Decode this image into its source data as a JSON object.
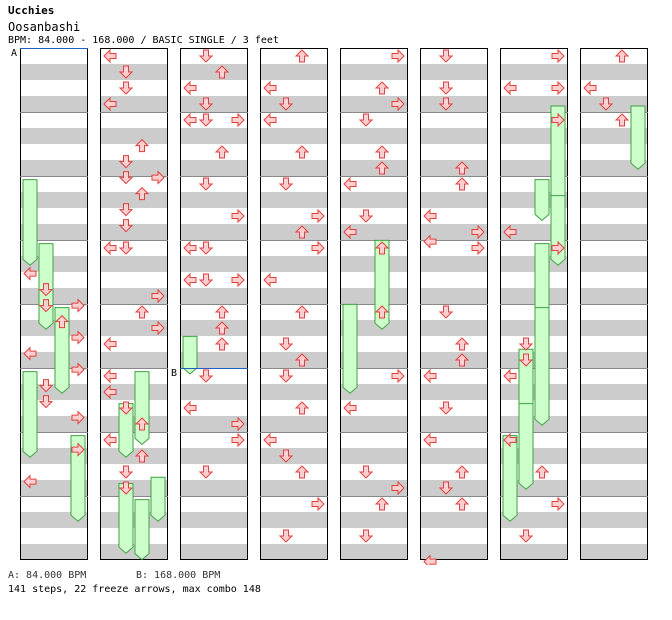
{
  "header": {
    "artist": "Ucchies",
    "title": "Oosanbashi",
    "meta": "BPM: 84.000 - 168.000 / BASIC SINGLE / 3 feet"
  },
  "bpm_markers": [
    {
      "label": "A",
      "column": 0,
      "row": 0
    },
    {
      "label": "B",
      "column": 2,
      "row": 5
    }
  ],
  "legend": {
    "a": "A: 84.000 BPM",
    "b": "B: 168.000 BPM"
  },
  "summary": "141 steps, 22 freeze arrows, max combo 148",
  "colors": {
    "stripe": "#cccccc",
    "arrow_fill": "#ffd0d0",
    "arrow_stroke": "#e04040",
    "freeze_fill": "#ccffcc",
    "freeze_stroke": "#40a040",
    "bpm_line": "#2060c0"
  },
  "arrow_icons": {
    "L": "arrow-left-icon",
    "D": "arrow-down-icon",
    "U": "arrow-up-icon",
    "R": "arrow-right-icon"
  },
  "notes": [
    [
      0,
      0,
      "L",
      6.8
    ],
    [
      0,
      0,
      "D",
      7.3
    ],
    [
      0,
      0,
      "D",
      7.8
    ],
    [
      0,
      0,
      "R",
      7.8
    ],
    [
      0,
      0,
      "U",
      8.3
    ],
    [
      0,
      0,
      "R",
      8.8
    ],
    [
      0,
      0,
      "L",
      9.3
    ],
    [
      0,
      0,
      "R",
      9.8
    ],
    [
      0,
      0,
      "D",
      10.3
    ],
    [
      0,
      0,
      "D",
      10.8
    ],
    [
      0,
      0,
      "R",
      11.3
    ],
    [
      0,
      0,
      "R",
      12.3
    ],
    [
      0,
      0,
      "L",
      13.3
    ],
    [
      0,
      1,
      "L",
      0
    ],
    [
      0,
      1,
      "D",
      0.5
    ],
    [
      0,
      1,
      "D",
      1
    ],
    [
      0,
      1,
      "L",
      1.5
    ],
    [
      0,
      1,
      "U",
      2.8
    ],
    [
      0,
      1,
      "D",
      3.3
    ],
    [
      0,
      1,
      "D",
      3.8
    ],
    [
      0,
      1,
      "R",
      3.8
    ],
    [
      0,
      1,
      "U",
      4.3
    ],
    [
      0,
      1,
      "D",
      4.8
    ],
    [
      0,
      1,
      "D",
      5.3
    ],
    [
      0,
      1,
      "L",
      6
    ],
    [
      0,
      1,
      "D",
      6
    ],
    [
      0,
      1,
      "R",
      7.5
    ],
    [
      0,
      1,
      "U",
      8
    ],
    [
      0,
      1,
      "R",
      8.5
    ],
    [
      0,
      1,
      "L",
      9
    ],
    [
      0,
      1,
      "L",
      10
    ],
    [
      0,
      1,
      "L",
      10.5
    ],
    [
      0,
      1,
      "D",
      11
    ],
    [
      0,
      1,
      "U",
      11.5
    ],
    [
      0,
      1,
      "L",
      12
    ],
    [
      0,
      1,
      "U",
      12.5
    ],
    [
      0,
      1,
      "D",
      13
    ],
    [
      0,
      1,
      "D",
      13.5
    ],
    [
      0,
      2,
      "D",
      0
    ],
    [
      0,
      2,
      "U",
      0.5
    ],
    [
      0,
      2,
      "L",
      1
    ],
    [
      0,
      2,
      "D",
      1.5
    ],
    [
      0,
      2,
      "L",
      2
    ],
    [
      0,
      2,
      "D",
      2
    ],
    [
      0,
      2,
      "R",
      2
    ],
    [
      0,
      2,
      "U",
      3
    ],
    [
      0,
      2,
      "D",
      4
    ],
    [
      0,
      2,
      "R",
      5
    ],
    [
      0,
      2,
      "D",
      6
    ],
    [
      0,
      2,
      "L",
      6
    ],
    [
      0,
      2,
      "D",
      7
    ],
    [
      0,
      2,
      "L",
      7
    ],
    [
      0,
      2,
      "R",
      7
    ],
    [
      0,
      2,
      "U",
      8
    ],
    [
      0,
      2,
      "U",
      8.5
    ],
    [
      0,
      2,
      "U",
      9
    ],
    [
      0,
      2,
      "D",
      10
    ],
    [
      0,
      2,
      "L",
      11
    ],
    [
      0,
      2,
      "R",
      11.5
    ],
    [
      0,
      2,
      "R",
      12
    ],
    [
      0,
      2,
      "D",
      13
    ],
    [
      0,
      3,
      "U",
      0
    ],
    [
      0,
      3,
      "L",
      1
    ],
    [
      0,
      3,
      "D",
      1.5
    ],
    [
      0,
      3,
      "L",
      2
    ],
    [
      0,
      3,
      "U",
      3
    ],
    [
      0,
      3,
      "D",
      4
    ],
    [
      0,
      3,
      "R",
      5
    ],
    [
      0,
      3,
      "U",
      5.5
    ],
    [
      0,
      3,
      "R",
      6
    ],
    [
      0,
      3,
      "L",
      7
    ],
    [
      0,
      3,
      "U",
      8
    ],
    [
      0,
      3,
      "D",
      9
    ],
    [
      0,
      3,
      "U",
      9.5
    ],
    [
      0,
      3,
      "D",
      10
    ],
    [
      0,
      3,
      "U",
      11
    ],
    [
      0,
      3,
      "L",
      12
    ],
    [
      0,
      3,
      "D",
      12.5
    ],
    [
      0,
      3,
      "U",
      13
    ],
    [
      0,
      3,
      "R",
      14
    ],
    [
      0,
      3,
      "D",
      15
    ],
    [
      1,
      0,
      "R",
      0
    ],
    [
      1,
      0,
      "U",
      1
    ],
    [
      1,
      0,
      "R",
      1.5
    ],
    [
      1,
      0,
      "D",
      2
    ],
    [
      1,
      0,
      "U",
      3
    ],
    [
      1,
      0,
      "U",
      3.5
    ],
    [
      1,
      0,
      "L",
      4
    ],
    [
      1,
      0,
      "D",
      5
    ],
    [
      1,
      0,
      "L",
      5.5
    ],
    [
      1,
      0,
      "U",
      6
    ],
    [
      1,
      0,
      "U",
      8
    ],
    [
      1,
      0,
      "R",
      10
    ],
    [
      1,
      0,
      "L",
      11
    ],
    [
      1,
      0,
      "D",
      13
    ],
    [
      1,
      0,
      "R",
      13.5
    ],
    [
      1,
      0,
      "U",
      14
    ],
    [
      1,
      0,
      "D",
      15
    ],
    [
      1,
      1,
      "D",
      0
    ],
    [
      1,
      1,
      "D",
      1
    ],
    [
      1,
      1,
      "D",
      1.5
    ],
    [
      1,
      1,
      "U",
      3.5
    ],
    [
      1,
      1,
      "U",
      4
    ],
    [
      1,
      1,
      "L",
      5
    ],
    [
      1,
      1,
      "R",
      5.5
    ],
    [
      1,
      1,
      "L",
      5.8
    ],
    [
      1,
      1,
      "R",
      6
    ],
    [
      1,
      1,
      "D",
      8
    ],
    [
      1,
      1,
      "U",
      9
    ],
    [
      1,
      1,
      "U",
      9.5
    ],
    [
      1,
      1,
      "L",
      10
    ],
    [
      1,
      1,
      "D",
      11
    ],
    [
      1,
      1,
      "L",
      12
    ],
    [
      1,
      1,
      "U",
      13
    ],
    [
      1,
      1,
      "D",
      13.5
    ],
    [
      1,
      1,
      "U",
      14
    ],
    [
      1,
      1,
      "L",
      15.8
    ],
    [
      1,
      2,
      "R",
      0
    ],
    [
      1,
      2,
      "L",
      1
    ],
    [
      1,
      2,
      "R",
      1
    ],
    [
      1,
      2,
      "R",
      2
    ],
    [
      1,
      2,
      "L",
      5.5
    ],
    [
      1,
      2,
      "R",
      6
    ],
    [
      1,
      2,
      "D",
      9
    ],
    [
      1,
      2,
      "D",
      9.5
    ],
    [
      1,
      2,
      "L",
      10
    ],
    [
      1,
      2,
      "L",
      12
    ],
    [
      1,
      2,
      "U",
      13
    ],
    [
      1,
      2,
      "R",
      14
    ],
    [
      1,
      2,
      "D",
      15
    ],
    [
      1,
      3,
      "U",
      0
    ],
    [
      1,
      3,
      "L",
      1
    ],
    [
      1,
      3,
      "D",
      1.5
    ],
    [
      1,
      3,
      "U",
      2
    ]
  ],
  "freezes": [
    [
      0,
      0,
      "L",
      4.3,
      6.6
    ],
    [
      0,
      0,
      "D",
      6.3,
      8.6
    ],
    [
      0,
      0,
      "U",
      8.3,
      10.6
    ],
    [
      0,
      0,
      "L",
      10.3,
      12.6
    ],
    [
      0,
      0,
      "R",
      12.3,
      14.6
    ],
    [
      0,
      1,
      "U",
      10.3,
      12.2
    ],
    [
      0,
      1,
      "D",
      11.3,
      12.6
    ],
    [
      0,
      1,
      "D",
      13.8,
      15.6
    ],
    [
      0,
      1,
      "R",
      13.6,
      14.6
    ],
    [
      0,
      1,
      "U",
      14.3,
      15.8
    ],
    [
      0,
      2,
      "L",
      9.2,
      10.0
    ],
    [
      1,
      0,
      "U",
      6.2,
      8.6
    ],
    [
      1,
      0,
      "L",
      8.2,
      10.6
    ],
    [
      1,
      2,
      "R",
      2,
      4.6
    ],
    [
      1,
      2,
      "R",
      4.8,
      6.6
    ],
    [
      1,
      2,
      "U",
      6.3,
      8.6
    ],
    [
      1,
      2,
      "U",
      8.3,
      11.6
    ],
    [
      1,
      2,
      "D",
      9.6,
      11.2
    ],
    [
      1,
      2,
      "D",
      11.3,
      13.6
    ],
    [
      1,
      2,
      "L",
      12.3,
      14.6
    ],
    [
      1,
      3,
      "R",
      2,
      3.6
    ],
    [
      1,
      2,
      "U",
      4.3,
      5.2
    ]
  ]
}
